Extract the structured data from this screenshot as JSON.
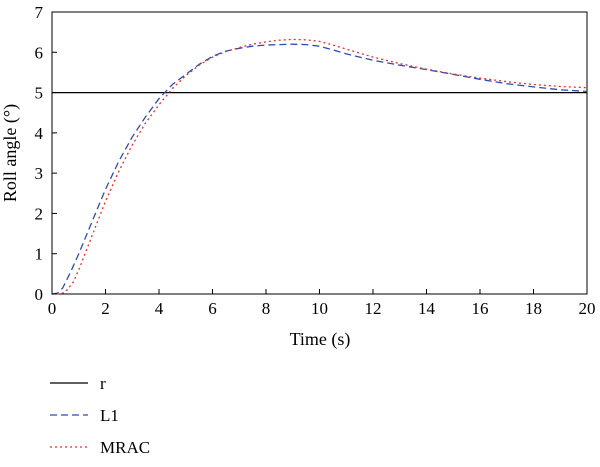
{
  "chart_data": {
    "type": "line",
    "xlabel": "Time (s)",
    "ylabel": "Roll angle (°)",
    "xlim": [
      0,
      20
    ],
    "ylim": [
      0,
      7
    ],
    "xticks": [
      0,
      2,
      4,
      6,
      8,
      10,
      12,
      14,
      16,
      18,
      20
    ],
    "yticks": [
      0,
      1,
      2,
      3,
      4,
      5,
      6,
      7
    ],
    "grid": false,
    "legend_position": "bottom-left, below plot",
    "series": [
      {
        "name": "r",
        "style": "solid",
        "color": "#000000",
        "x": [
          0,
          20
        ],
        "y": [
          5,
          5
        ]
      },
      {
        "name": "L1",
        "style": "dashed",
        "color": "#2a4db5",
        "x": [
          0,
          0.2,
          0.4,
          0.7,
          1,
          1.5,
          2,
          2.5,
          3,
          3.5,
          4,
          4.5,
          5,
          5.5,
          6,
          6.5,
          7,
          7.5,
          8,
          8.5,
          9,
          9.5,
          10,
          10.5,
          11,
          12,
          13,
          14,
          15,
          16,
          17,
          18,
          19,
          20
        ],
        "y": [
          0,
          0.02,
          0.15,
          0.55,
          1.0,
          1.8,
          2.6,
          3.3,
          3.9,
          4.4,
          4.85,
          5.2,
          5.45,
          5.7,
          5.9,
          6.03,
          6.1,
          6.15,
          6.18,
          6.19,
          6.2,
          6.19,
          6.15,
          6.06,
          5.96,
          5.8,
          5.68,
          5.57,
          5.45,
          5.33,
          5.22,
          5.14,
          5.07,
          5.03
        ]
      },
      {
        "name": "MRAC",
        "style": "dotted",
        "color": "#e8302a",
        "x": [
          0,
          0.3,
          0.5,
          0.8,
          1,
          1.5,
          2,
          2.5,
          3,
          3.5,
          4,
          4.5,
          5,
          5.5,
          6,
          6.5,
          7,
          7.5,
          8,
          8.5,
          9,
          9.5,
          10,
          10.5,
          11,
          12,
          13,
          14,
          15,
          16,
          17,
          18,
          19,
          20
        ],
        "y": [
          0,
          0.0,
          0.05,
          0.3,
          0.6,
          1.45,
          2.3,
          3.05,
          3.7,
          4.25,
          4.7,
          5.1,
          5.42,
          5.68,
          5.88,
          6.02,
          6.12,
          6.2,
          6.26,
          6.3,
          6.32,
          6.31,
          6.27,
          6.18,
          6.08,
          5.88,
          5.72,
          5.58,
          5.46,
          5.36,
          5.27,
          5.2,
          5.15,
          5.12
        ]
      }
    ]
  }
}
